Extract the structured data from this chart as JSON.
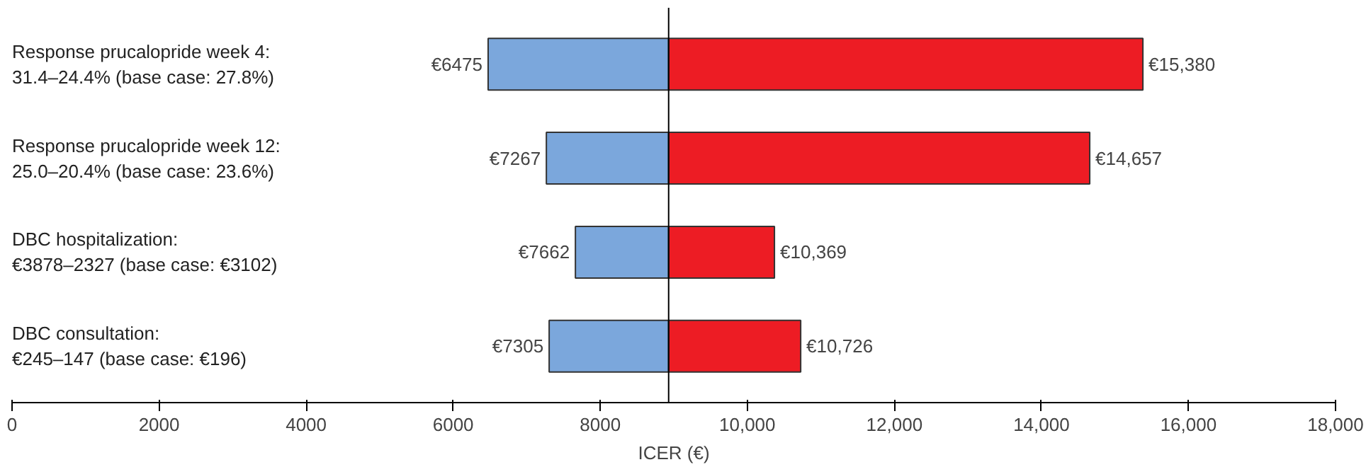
{
  "chart_data": {
    "type": "bar",
    "orientation": "horizontal",
    "xlabel": "ICER (€)",
    "categories": [
      "Response prucalopride week 4:\n    31.4–24.4% (base case: 27.8%)",
      "Response prucalopride week 12:\n    25.0–20.4% (base case: 23.6%)",
      "DBC hospitalization:\n    €3878–2327 (base case: €3102)",
      "DBC consultation:\n    €245–147 (base case: €196)"
    ],
    "series": [
      {
        "color": "#7ba7dc",
        "base": [
          8930,
          8930,
          8930,
          8930
        ],
        "values": [
          -2455,
          -1663,
          -1268,
          -1625
        ]
      },
      {
        "color": "#ed1c24",
        "base": [
          8930,
          8930,
          8930,
          8930
        ],
        "values": [
          6450,
          5727,
          1439,
          1796
        ]
      }
    ],
    "annotations": [
      {
        "text": "€6475",
        "x": 6475,
        "y": "Response prucalopride week 4:\n    31.4–24.4% (base case: 27.8%)"
      },
      {
        "text": "€7267",
        "x": 7267,
        "y": "Response prucalopride week 12:\n    25.0–20.4% (base case: 23.6%)"
      },
      {
        "text": "€7662",
        "x": 7662,
        "y": "DBC hospitalization:\n    €3878–2327 (base case: €3102)"
      },
      {
        "text": "€7305",
        "x": 7305,
        "y": "DBC consultation:\n    €245–147 (base case: €196)"
      },
      {
        "text": "€15,380",
        "x": 15380,
        "y": "Response prucalopride week 4:\n    31.4–24.4% (base case: 27.8%)"
      },
      {
        "text": "€14,657",
        "x": 14657,
        "y": "Response prucalopride week 12:\n    25.0–20.4% (base case: 23.6%)"
      },
      {
        "text": "€10,369",
        "x": 10369,
        "y": "DBC hospitalization:\n    €3878–2327 (base case: €3102)"
      },
      {
        "text": "€10,726",
        "x": 10726,
        "y": "DBC consultation:\n    €245–147 (base case: €196)"
      }
    ],
    "xlim": [
      0,
      18000
    ],
    "xticks": [
      0,
      2000,
      4000,
      6000,
      8000,
      {
        "value": 10000,
        "label": "10,000"
      },
      {
        "value": 12000,
        "label": "12,000"
      },
      {
        "value": 14000,
        "label": "14,000"
      },
      {
        "value": 16000,
        "label": "16,000"
      },
      {
        "value": 18000,
        "label": "18,000"
      }
    ],
    "ref_lines": [
      {
        "axis": "x",
        "value": 8930,
        "color": "#000000"
      }
    ],
    "grid": false
  }
}
